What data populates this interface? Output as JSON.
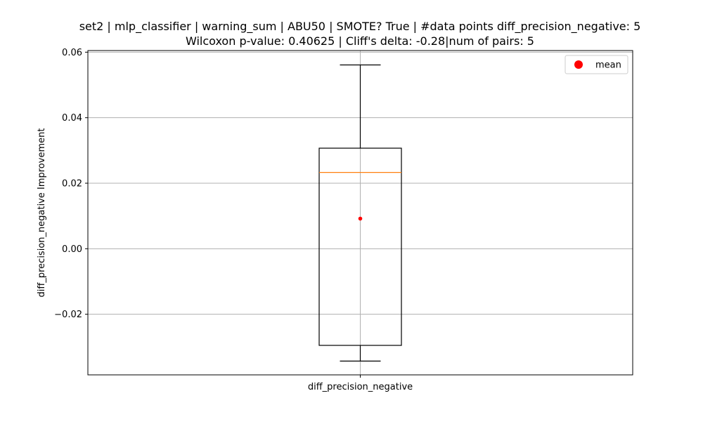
{
  "chart_data": {
    "type": "box",
    "title": [
      "set2 | mlp_classifier | warning_sum | ABU50 | SMOTE? True | #data points diff_precision_negative: 5",
      "Wilcoxon p-value: 0.40625 | Cliff's delta: -0.28|num of pairs: 5"
    ],
    "xlabel": "",
    "ylabel": "diff_precision_negative Improvement",
    "categories": [
      "diff_precision_negative"
    ],
    "ylim": [
      -0.0385,
      0.0605
    ],
    "yticks": [
      -0.02,
      0.0,
      0.02,
      0.04,
      0.06
    ],
    "ytick_labels": [
      "−0.02",
      "0.00",
      "0.02",
      "0.04",
      "0.06"
    ],
    "grid": true,
    "legend": {
      "placement": "top-right",
      "entries": [
        {
          "label": "mean",
          "color": "#ff0000"
        }
      ]
    },
    "series": [
      {
        "category": "diff_precision_negative",
        "whisker_low": -0.0343,
        "q1": -0.0295,
        "median": 0.0233,
        "q3": 0.0307,
        "whisker_high": 0.0561,
        "mean": 0.0092
      }
    ],
    "colors": {
      "box": "#000000",
      "median": "#ff7f0e",
      "mean": "#ff0000",
      "grid": "#b0b0b0"
    }
  }
}
